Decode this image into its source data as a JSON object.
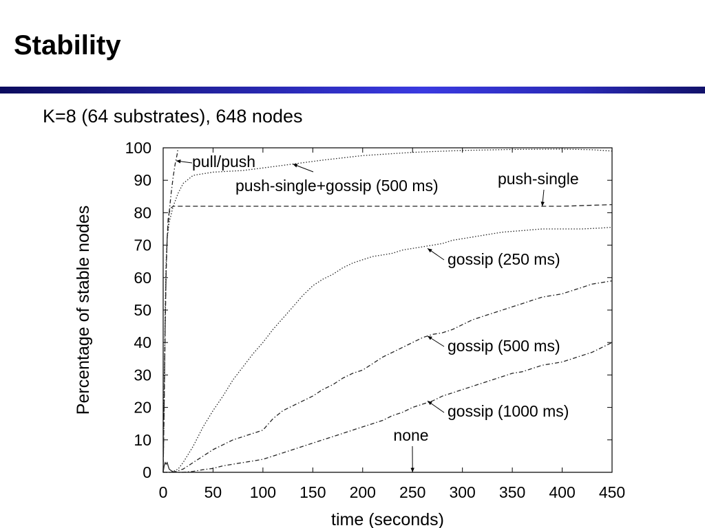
{
  "slide": {
    "title": "Stability",
    "subtitle": "K=8 (64 substrates), 648 nodes"
  },
  "chart_data": {
    "type": "line",
    "title": "",
    "xlabel": "time (seconds)",
    "ylabel": "Percentage of stable nodes",
    "xlim": [
      0,
      450
    ],
    "ylim": [
      0,
      100
    ],
    "xticks": [
      0,
      50,
      100,
      150,
      200,
      250,
      300,
      350,
      400,
      450
    ],
    "yticks": [
      0,
      10,
      20,
      30,
      40,
      50,
      60,
      70,
      80,
      90,
      100
    ],
    "grid": false,
    "legend": "none",
    "series": [
      {
        "name": "pull/push",
        "style": "dash-dot",
        "x": [
          0,
          1,
          2,
          3,
          4,
          6,
          8,
          10,
          12,
          14,
          15
        ],
        "y": [
          0,
          20,
          45,
          62,
          72,
          80,
          86,
          91,
          95,
          98,
          100
        ]
      },
      {
        "name": "push-single+gossip (500 ms)",
        "style": "dotted",
        "x": [
          0,
          1,
          2,
          3,
          4,
          6,
          10,
          15,
          20,
          30,
          50,
          80,
          100,
          130,
          160,
          200,
          250,
          300,
          350,
          400,
          430,
          450
        ],
        "y": [
          0,
          25,
          50,
          65,
          72,
          77,
          82,
          86,
          89,
          91.5,
          92.5,
          93,
          93.8,
          95,
          96.2,
          97.6,
          98.6,
          99.2,
          99.5,
          99.6,
          99.4,
          99.0
        ]
      },
      {
        "name": "push-single",
        "style": "dashed",
        "x": [
          0,
          1,
          2,
          3,
          4,
          5,
          6,
          8,
          10,
          15,
          20,
          50,
          100,
          200,
          300,
          400,
          450
        ],
        "y": [
          0,
          20,
          45,
          62,
          72,
          78,
          80,
          81.5,
          82,
          82,
          82,
          82,
          82,
          82,
          82,
          82,
          82.5
        ]
      },
      {
        "name": "gossip (250 ms)",
        "style": "dotted",
        "x": [
          0,
          8,
          15,
          20,
          30,
          40,
          50,
          60,
          70,
          80,
          90,
          100,
          110,
          120,
          130,
          140,
          150,
          160,
          170,
          180,
          190,
          200,
          210,
          220,
          230,
          240,
          250,
          260,
          270,
          280,
          290,
          300,
          320,
          340,
          360,
          380,
          400,
          420,
          440,
          450
        ],
        "y": [
          0,
          0,
          1,
          3,
          8,
          14,
          19,
          23.5,
          28.5,
          32.5,
          36.5,
          40,
          44,
          47.5,
          51,
          54.5,
          57.5,
          59.5,
          61,
          63,
          64.5,
          65.5,
          66.5,
          67,
          67.5,
          68.5,
          69,
          69.5,
          70,
          70.5,
          71.5,
          72,
          73,
          74,
          74.5,
          75,
          75,
          75,
          75.3,
          75.5
        ]
      },
      {
        "name": "gossip (500 ms)",
        "style": "dash-dot",
        "x": [
          0,
          10,
          20,
          30,
          40,
          50,
          60,
          70,
          80,
          90,
          100,
          110,
          120,
          130,
          140,
          150,
          160,
          170,
          180,
          190,
          200,
          210,
          220,
          230,
          240,
          250,
          260,
          270,
          280,
          290,
          300,
          310,
          320,
          330,
          340,
          350,
          360,
          370,
          380,
          390,
          400,
          410,
          420,
          430,
          440,
          450
        ],
        "y": [
          0,
          0,
          1,
          3,
          5,
          7,
          8.5,
          10,
          11,
          12,
          13,
          16.5,
          19,
          20.5,
          22,
          23.5,
          25.5,
          27,
          29,
          30.5,
          31.5,
          33.5,
          35.5,
          37,
          38.5,
          40,
          41.5,
          42.5,
          43,
          44,
          45.5,
          47,
          48,
          49,
          50,
          51,
          52,
          53,
          54,
          54.5,
          55,
          56,
          57,
          58,
          58.5,
          59
        ]
      },
      {
        "name": "gossip (1000 ms)",
        "style": "dash-dot",
        "x": [
          0,
          10,
          20,
          30,
          40,
          50,
          60,
          70,
          80,
          90,
          100,
          110,
          120,
          130,
          140,
          150,
          160,
          170,
          180,
          190,
          200,
          210,
          220,
          230,
          240,
          250,
          260,
          270,
          280,
          290,
          300,
          310,
          320,
          330,
          340,
          350,
          360,
          370,
          380,
          390,
          400,
          410,
          420,
          430,
          440,
          450
        ],
        "y": [
          0,
          0,
          0,
          0.3,
          0.8,
          1.2,
          2,
          2.5,
          3,
          3.5,
          4,
          5,
          6,
          7,
          8,
          9,
          10,
          11,
          12,
          13,
          14,
          15,
          16,
          17.5,
          18.5,
          20,
          21,
          22,
          23.5,
          24.5,
          25.5,
          26.5,
          27.5,
          28.5,
          29.5,
          30.5,
          31,
          32,
          33,
          33.5,
          34,
          35,
          36,
          37,
          38.5,
          40
        ]
      },
      {
        "name": "none",
        "style": "solid",
        "x": [
          0,
          1,
          2,
          3,
          4,
          5,
          6,
          8,
          10,
          15,
          20,
          50,
          100,
          200,
          300,
          450
        ],
        "y": [
          0,
          2,
          3,
          2.5,
          3,
          2,
          1,
          0.5,
          0.2,
          0,
          0,
          0,
          0,
          0,
          0,
          0
        ]
      }
    ],
    "annotations": [
      {
        "text": "pull/push",
        "series": "pull/push",
        "arrow_to": [
          13,
          96
        ]
      },
      {
        "text": "push-single+gossip (500 ms)",
        "series": "push-single+gossip (500 ms)",
        "arrow_to": [
          130,
          95
        ]
      },
      {
        "text": "push-single",
        "series": "push-single",
        "arrow_to": [
          380,
          82
        ]
      },
      {
        "text": "gossip (250 ms)",
        "series": "gossip (250 ms)",
        "arrow_to": [
          265,
          69
        ]
      },
      {
        "text": "gossip (500 ms)",
        "series": "gossip (500 ms)",
        "arrow_to": [
          265,
          42
        ]
      },
      {
        "text": "gossip (1000 ms)",
        "series": "gossip (1000 ms)",
        "arrow_to": [
          265,
          22
        ]
      },
      {
        "text": "none",
        "series": "none",
        "arrow_to": [
          250,
          0
        ]
      }
    ]
  }
}
